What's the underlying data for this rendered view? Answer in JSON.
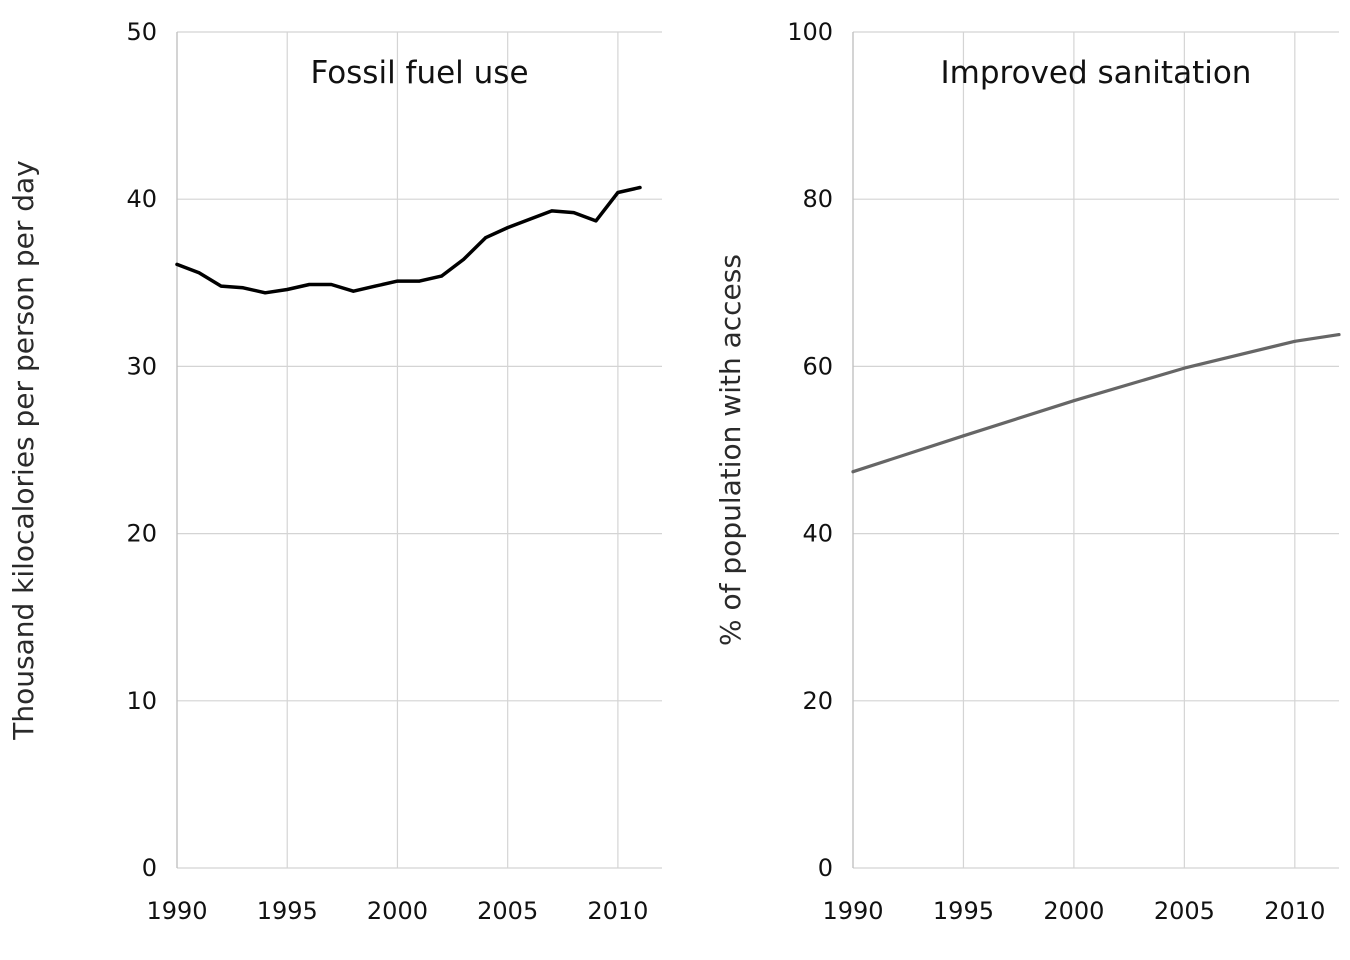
{
  "chart_data": [
    {
      "type": "line",
      "title": "Fossil fuel use",
      "ylabel": "Thousand kilocalories per person per day",
      "xlabel": "",
      "xlim": [
        1990,
        2012
      ],
      "ylim": [
        0,
        50
      ],
      "xticks": [
        "1990",
        "1995",
        "2000",
        "2005",
        "2010"
      ],
      "yticks": [
        "0",
        "10",
        "20",
        "30",
        "40",
        "50"
      ],
      "grid": true,
      "series": [
        {
          "color": "#000000",
          "x": [
            1990,
            1991,
            1992,
            1993,
            1994,
            1995,
            1996,
            1997,
            1998,
            1999,
            2000,
            2001,
            2002,
            2003,
            2004,
            2005,
            2006,
            2007,
            2008,
            2009,
            2010,
            2011
          ],
          "values": [
            36.1,
            35.6,
            34.8,
            34.7,
            34.4,
            34.6,
            34.9,
            34.9,
            34.5,
            34.8,
            35.1,
            35.1,
            35.4,
            36.4,
            37.7,
            38.3,
            38.8,
            39.3,
            39.2,
            38.7,
            40.4,
            40.7
          ]
        }
      ]
    },
    {
      "type": "line",
      "title": "Improved sanitation",
      "ylabel": "% of population with access",
      "xlabel": "",
      "xlim": [
        1990,
        2012
      ],
      "ylim": [
        0,
        100
      ],
      "xticks": [
        "1990",
        "1995",
        "2000",
        "2005",
        "2010"
      ],
      "yticks": [
        "0",
        "20",
        "40",
        "60",
        "80",
        "100"
      ],
      "grid": true,
      "series": [
        {
          "color": "#666666",
          "x": [
            1990,
            1995,
            2000,
            2005,
            2010,
            2012
          ],
          "values": [
            47.4,
            51.7,
            55.9,
            59.8,
            63.0,
            63.8
          ]
        }
      ]
    }
  ]
}
